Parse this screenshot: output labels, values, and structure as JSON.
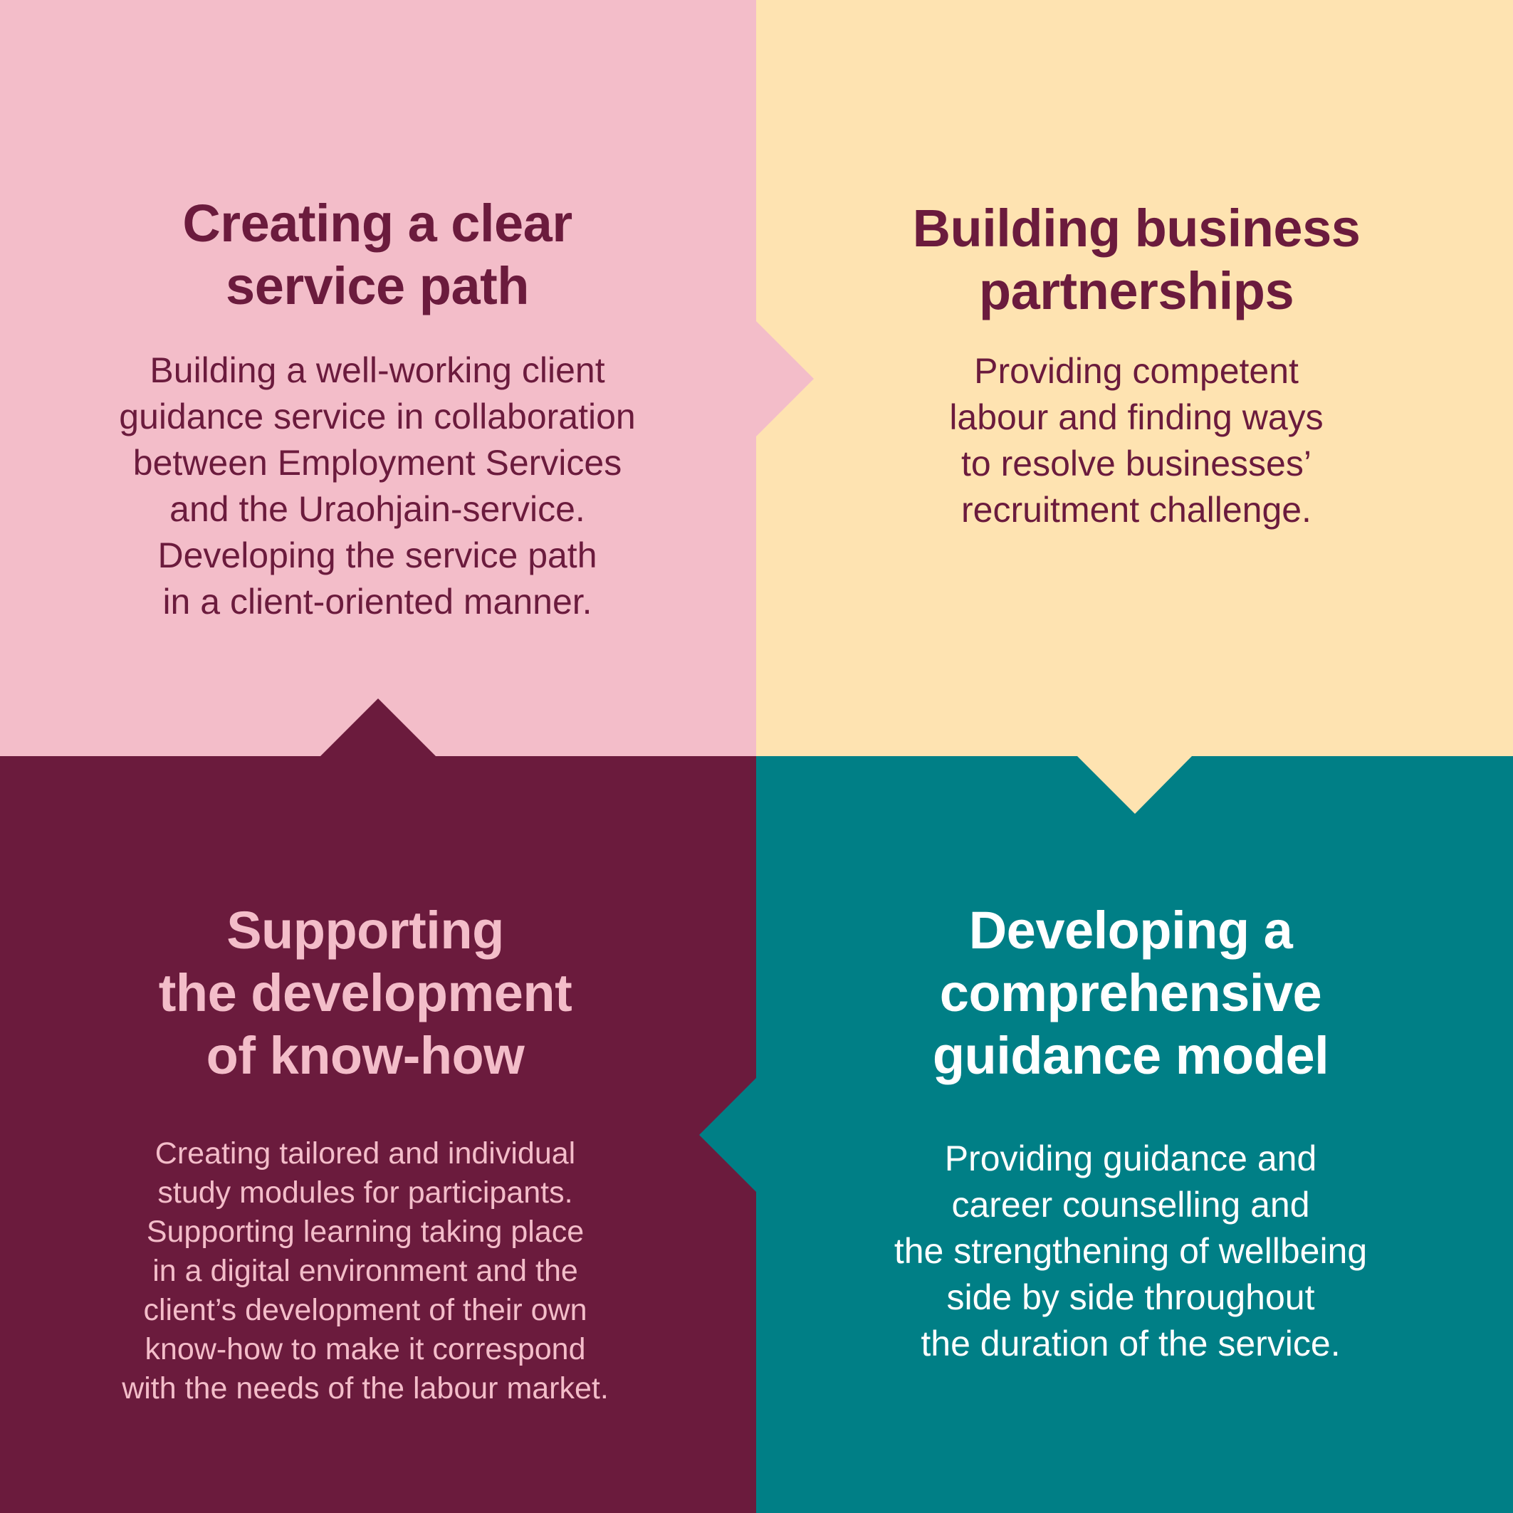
{
  "colors": {
    "pink": "#f3bdc9",
    "cream": "#fee3b1",
    "maroon": "#6b1b3d",
    "teal": "#007f86",
    "light_pink_text": "#f3bdc9",
    "white": "#ffffff"
  },
  "quadrants": [
    {
      "id": "top-left",
      "title": "Creating a clear\nservice path",
      "body": "Building a well-working client\nguidance service in collaboration\nbetween Employment Services\nand the Uraohjain-service.\nDeveloping the service path\nin a client-oriented manner.",
      "background": "#f3bdc9",
      "title_color": "#6b1b3d",
      "body_color": "#6b1b3d"
    },
    {
      "id": "top-right",
      "title": "Building business\npartnerships",
      "body": "Providing competent\nlabour and finding ways\nto resolve businesses’\nrecruitment challenge.",
      "background": "#fee3b1",
      "title_color": "#6b1b3d",
      "body_color": "#6b1b3d"
    },
    {
      "id": "bottom-left",
      "title": "Supporting\nthe development\nof know-how",
      "body": "Creating tailored and individual\nstudy modules for participants.\n Supporting learning taking place\nin a digital environment and the\nclient’s development of their own\nknow-how to make it correspond\nwith the needs of the labour market.",
      "background": "#6b1b3d",
      "title_color": "#f3bdc9",
      "body_color": "#f3bdc9"
    },
    {
      "id": "bottom-right",
      "title": "Developing a\ncomprehensive\nguidance model",
      "body": "Providing guidance and\ncareer counselling and\nthe strengthening of wellbeing\nside by side throughout\nthe duration of the service.",
      "background": "#007f86",
      "title_color": "#ffffff",
      "body_color": "#ffffff"
    }
  ]
}
